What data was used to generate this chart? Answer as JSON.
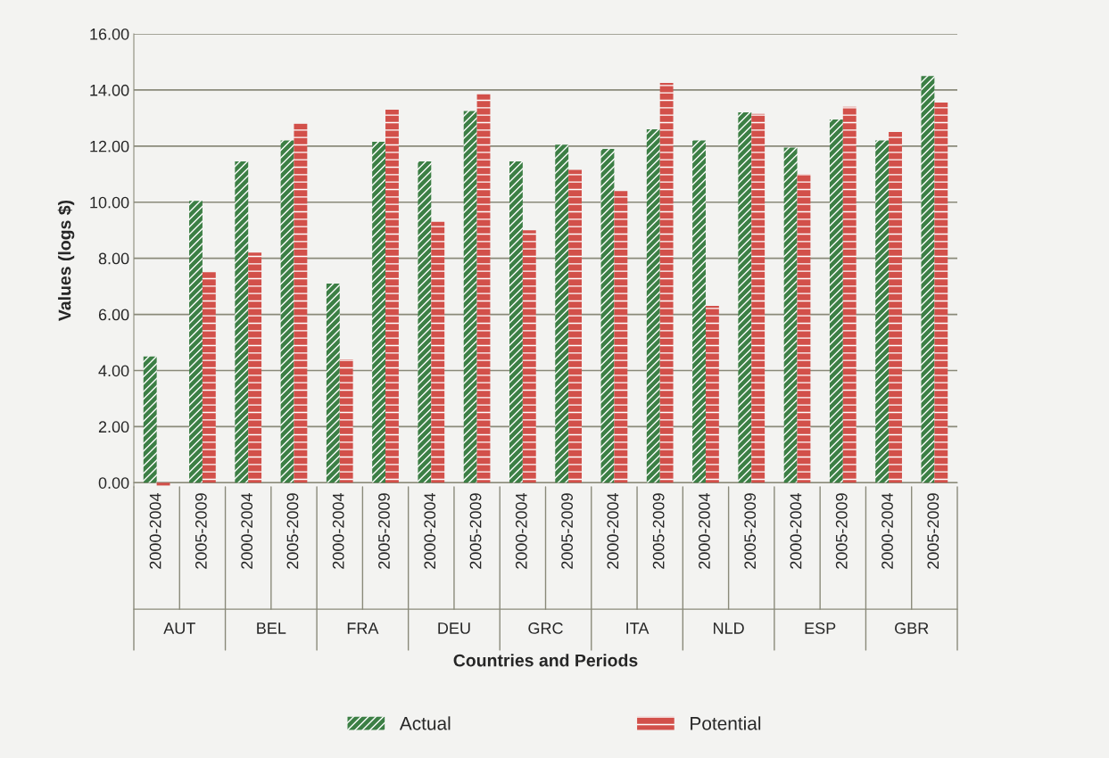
{
  "chart_data": {
    "type": "bar",
    "xlabel": "Countries and Periods",
    "ylabel": "Values (logs $)",
    "categories": [
      "2000-2004",
      "2005-2009",
      "2000-2004",
      "2005-2009",
      "2000-2004",
      "2005-2009",
      "2000-2004",
      "2005-2009",
      "2000-2004",
      "2005-2009",
      "2000-2004",
      "2005-2009",
      "2000-2004",
      "2005-2009",
      "2000-2004",
      "2005-2009",
      "2000-2004",
      "2005-2009"
    ],
    "annotations": [
      "AUT",
      "BEL",
      "FRA",
      "DEU",
      "GRC",
      "ITA",
      "NLD",
      "ESP",
      "GBR"
    ],
    "series": [
      {
        "name": "Actual",
        "color": "#3c7f45",
        "values": [
          4.5,
          10.05,
          11.45,
          12.2,
          7.1,
          12.15,
          11.45,
          13.25,
          11.45,
          12.05,
          11.9,
          12.6,
          12.2,
          13.2,
          11.95,
          12.95,
          12.2,
          14.5
        ]
      },
      {
        "name": "Potential",
        "color": "#d2504a",
        "values": [
          -0.1,
          7.5,
          8.2,
          12.8,
          4.4,
          13.3,
          9.3,
          13.85,
          9.0,
          11.15,
          10.4,
          14.25,
          6.3,
          13.15,
          11.0,
          13.4,
          12.5,
          13.55
        ]
      }
    ],
    "ylim": [
      -0.15,
      16
    ],
    "yticks": [
      {
        "value": 0,
        "label": "0.00"
      },
      {
        "value": 2,
        "label": "2.00"
      },
      {
        "value": 4,
        "label": "4.00"
      },
      {
        "value": 6,
        "label": "6.00"
      },
      {
        "value": 8,
        "label": "8.00"
      },
      {
        "value": 10,
        "label": "10.00"
      },
      {
        "value": 12,
        "label": "12.00"
      },
      {
        "value": 14,
        "label": "14.00"
      },
      {
        "value": 16,
        "label": "16.00"
      }
    ],
    "grid": "y",
    "legend": "bottom"
  }
}
